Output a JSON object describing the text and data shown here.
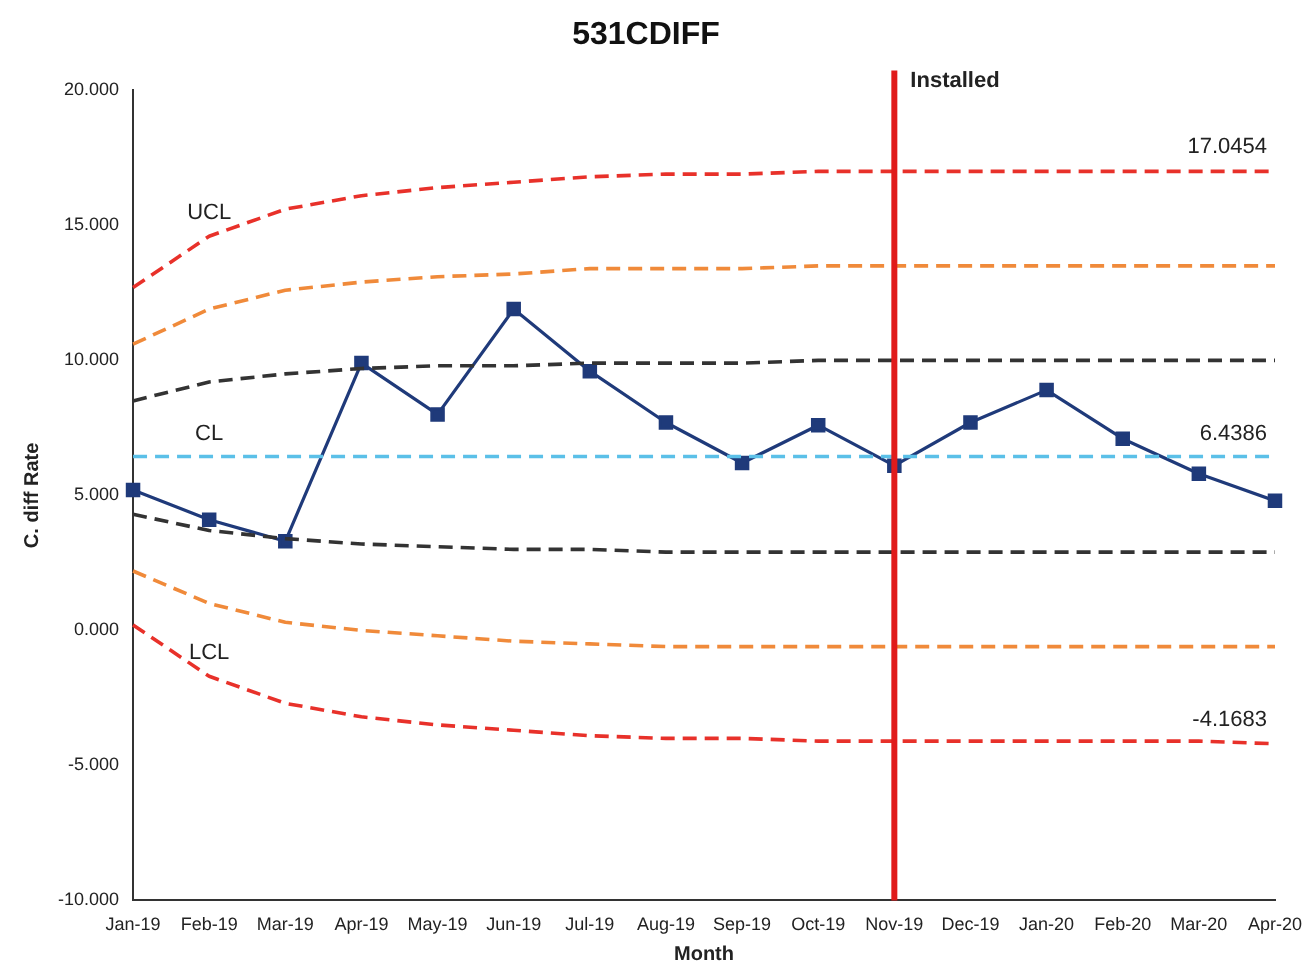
{
  "chart_data": {
    "type": "line",
    "title": "531CDIFF",
    "xlabel": "Month",
    "ylabel": "C. diff Rate",
    "categories": [
      "Jan-19",
      "Feb-19",
      "Mar-19",
      "Apr-19",
      "May-19",
      "Jun-19",
      "Jul-19",
      "Aug-19",
      "Sep-19",
      "Oct-19",
      "Nov-19",
      "Dec-19",
      "Jan-20",
      "Feb-20",
      "Mar-20",
      "Apr-20"
    ],
    "series": [
      {
        "name": "UCL",
        "color": "#e8312a",
        "line_style": "dashed",
        "marker": "none",
        "values": [
          12.7,
          14.6,
          15.6,
          16.1,
          16.4,
          16.6,
          16.8,
          16.9,
          16.9,
          17.0,
          17.0,
          17.0,
          17.0,
          17.0,
          17.0,
          17.0
        ]
      },
      {
        "color": "#f08a3a",
        "line_style": "dashed",
        "marker": "none",
        "values": [
          10.6,
          11.9,
          12.6,
          12.9,
          13.1,
          13.2,
          13.4,
          13.4,
          13.4,
          13.5,
          13.5,
          13.5,
          13.5,
          13.5,
          13.5,
          13.5
        ]
      },
      {
        "color": "#333333",
        "line_style": "dashed",
        "marker": "none",
        "values": [
          8.5,
          9.2,
          9.5,
          9.7,
          9.8,
          9.8,
          9.9,
          9.9,
          9.9,
          10.0,
          10.0,
          10.0,
          10.0,
          10.0,
          10.0,
          10.0
        ]
      },
      {
        "name": "CL",
        "color": "#5bc0e8",
        "line_style": "dashed",
        "marker": "none",
        "values": [
          6.4386,
          6.4386,
          6.4386,
          6.4386,
          6.4386,
          6.4386,
          6.4386,
          6.4386,
          6.4386,
          6.4386,
          6.4386,
          6.4386,
          6.4386,
          6.4386,
          6.4386,
          6.4386
        ]
      },
      {
        "color": "#333333",
        "line_style": "dashed",
        "marker": "none",
        "values": [
          4.3,
          3.7,
          3.4,
          3.2,
          3.1,
          3.0,
          3.0,
          2.9,
          2.9,
          2.9,
          2.9,
          2.9,
          2.9,
          2.9,
          2.9,
          2.9
        ]
      },
      {
        "color": "#f08a3a",
        "line_style": "dashed",
        "marker": "none",
        "values": [
          2.2,
          1.0,
          0.3,
          0.0,
          -0.2,
          -0.4,
          -0.5,
          -0.6,
          -0.6,
          -0.6,
          -0.6,
          -0.6,
          -0.6,
          -0.6,
          -0.6,
          -0.6
        ]
      },
      {
        "name": "LCL",
        "color": "#e8312a",
        "line_style": "dashed",
        "marker": "none",
        "values": [
          0.2,
          -1.7,
          -2.7,
          -3.2,
          -3.5,
          -3.7,
          -3.9,
          -4.0,
          -4.0,
          -4.1,
          -4.1,
          -4.1,
          -4.1,
          -4.1,
          -4.1,
          -4.2
        ]
      },
      {
        "color": "#1f3a7a",
        "line_style": "solid",
        "marker": "square",
        "values": [
          5.2,
          4.1,
          3.3,
          9.9,
          8.0,
          11.9,
          9.6,
          7.7,
          6.2,
          7.6,
          6.1,
          7.7,
          8.9,
          7.1,
          5.8,
          4.8
        ]
      }
    ],
    "ylim": [
      -10,
      20
    ],
    "yticks": [
      {
        "value": -10,
        "label": "-10.000"
      },
      {
        "value": -5,
        "label": "-5.000"
      },
      {
        "value": 0,
        "label": "0.000"
      },
      {
        "value": 5,
        "label": "5.000"
      },
      {
        "value": 10,
        "label": "10.000"
      },
      {
        "value": 15,
        "label": "15.000"
      },
      {
        "value": 20,
        "label": "20.000"
      }
    ],
    "grid": false,
    "legend": false,
    "ref_lines": [
      {
        "axis": "x",
        "value": "Nov-19",
        "label": "Installed",
        "color": "#e01b1b",
        "line_style": "solid"
      }
    ],
    "annotations": [
      {
        "text": "17.0454",
        "x": "Apr-20",
        "y": 17.0454
      },
      {
        "text": "6.4386",
        "x": "Apr-20",
        "y": 6.4386
      },
      {
        "text": "-4.1683",
        "x": "Apr-20",
        "y": -4.1683
      }
    ]
  }
}
